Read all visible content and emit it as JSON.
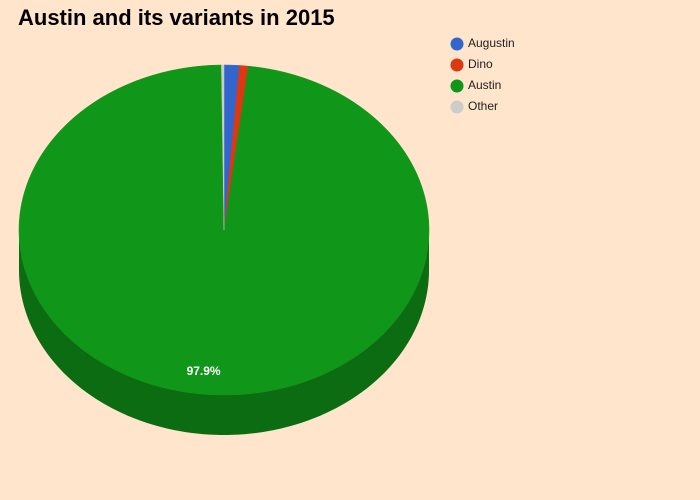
{
  "chart_data": {
    "type": "pie3d",
    "title": "Austin and its variants in 2015",
    "categories": [
      "Augustin",
      "Dino",
      "Austin",
      "Other"
    ],
    "values": [
      1.2,
      0.7,
      97.9,
      0.2
    ],
    "value_labels": [
      null,
      null,
      "97.9%",
      null
    ],
    "colors": [
      "#3366cc",
      "#dc3912",
      "#109618",
      "#cccccc"
    ],
    "legend": "right"
  }
}
